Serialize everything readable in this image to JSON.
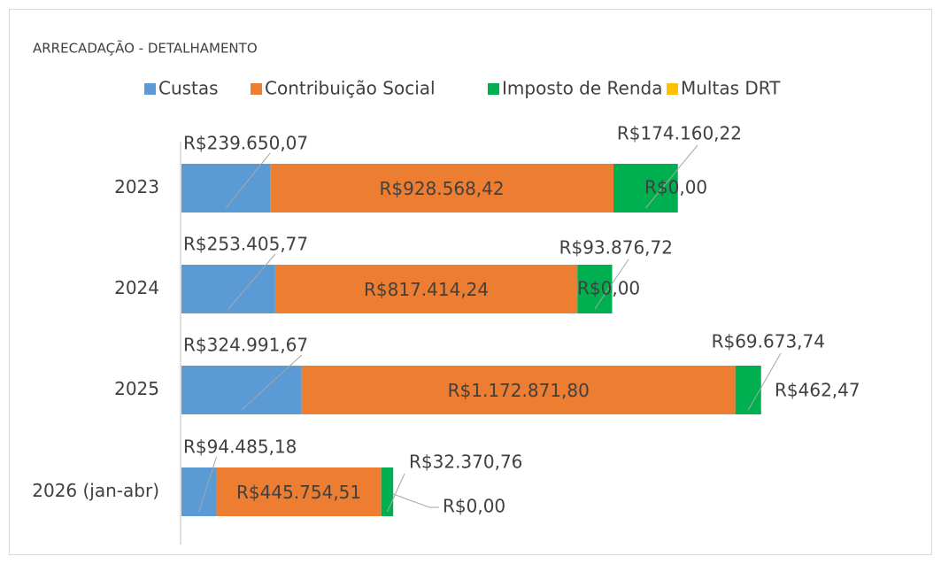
{
  "chart_data": {
    "type": "stacked-bar-horizontal",
    "title": "ARRECADAÇÃO - DETALHAMENTO",
    "categories": [
      "2023",
      "2024",
      "2025",
      "2026 (jan-abr)"
    ],
    "series": [
      {
        "name": "Custas",
        "color": "#5b9bd5",
        "values": [
          239650.07,
          253405.77,
          324991.67,
          94485.18
        ],
        "value_labels": [
          "R$239.650,07",
          "R$253.405,77",
          "R$324.991,67",
          "R$94.485,18"
        ]
      },
      {
        "name": "Contribuição Social",
        "color": "#ed7d31",
        "values": [
          928568.42,
          817414.24,
          1172871.8,
          445754.51
        ],
        "value_labels": [
          "R$928.568,42",
          "R$817.414,24",
          "R$1.172.871,80",
          "R$445.754,51"
        ]
      },
      {
        "name": "Imposto de Renda",
        "color": "#00b050",
        "values": [
          174160.22,
          93876.72,
          69673.74,
          32370.76
        ],
        "value_labels": [
          "R$174.160,22",
          "R$93.876,72",
          "R$69.673,74",
          "R$32.370,76"
        ]
      },
      {
        "name": "Multas DRT",
        "color": "#ffc000",
        "values": [
          0,
          0,
          462.47,
          0
        ],
        "value_labels": [
          "R$0,00",
          "R$0,00",
          "R$462,47",
          "R$0,00"
        ]
      }
    ]
  }
}
